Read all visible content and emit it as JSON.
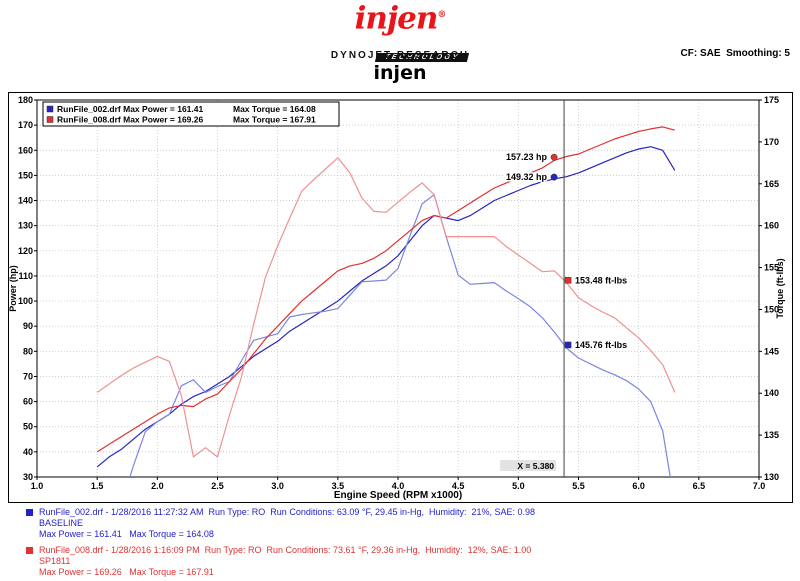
{
  "header": {
    "logo_text": "injen",
    "logo_reg": "®",
    "logo_banner": "TECHNOLOGY",
    "lab_name": "DYNOJET RESEARCH",
    "cf_label": "CF: SAE  Smoothing: 5",
    "title": "injen"
  },
  "chart_data": {
    "type": "line",
    "xlabel": "Engine Speed (RPM x1000)",
    "ylabel_left": "Power (hp)",
    "ylabel_right": "Torque (ft-lbs)",
    "x_range": [
      1.0,
      7.0
    ],
    "x_tick_step": 0.5,
    "power_range": [
      30,
      180
    ],
    "power_tick_step": 10,
    "torque_range": [
      130,
      175
    ],
    "torque_tick_step": 5,
    "grid": true,
    "cursor_x": 5.38,
    "cursor_label": "X = 5.380",
    "x": [
      1.5,
      1.6,
      1.7,
      1.8,
      1.9,
      2.0,
      2.1,
      2.2,
      2.3,
      2.4,
      2.5,
      2.6,
      2.7,
      2.8,
      2.9,
      3.0,
      3.1,
      3.2,
      3.3,
      3.4,
      3.5,
      3.6,
      3.7,
      3.8,
      3.9,
      4.0,
      4.1,
      4.2,
      4.3,
      4.4,
      4.5,
      4.6,
      4.7,
      4.8,
      4.9,
      5.0,
      5.1,
      5.2,
      5.3,
      5.4,
      5.5,
      5.6,
      5.7,
      5.8,
      5.9,
      6.0,
      6.1,
      6.2,
      6.3
    ],
    "series": [
      {
        "name": "RunFile_002.drf Power (hp)",
        "axis": "power",
        "color": "#2525c0",
        "values": [
          34,
          38,
          41,
          45,
          49,
          52,
          55,
          59,
          62,
          64,
          67,
          70,
          74,
          78,
          81,
          84,
          88,
          91,
          94,
          97,
          100,
          104,
          108,
          111,
          114,
          118,
          124,
          130,
          134,
          133,
          132,
          134,
          137,
          140,
          142,
          144,
          146,
          147.5,
          148.6,
          149.5,
          151,
          153,
          155,
          157,
          159,
          160.5,
          161.4,
          160,
          152
        ]
      },
      {
        "name": "RunFile_002.drf Torque (ft-lbs)",
        "axis": "torque",
        "color": "#7b86e0",
        "values": [
          119.0,
          124.7,
          126.7,
          131.3,
          135.4,
          136.6,
          137.5,
          140.9,
          141.6,
          140.1,
          140.8,
          141.4,
          143.9,
          146.3,
          146.7,
          147.1,
          149.1,
          149.4,
          149.6,
          149.8,
          150.1,
          151.7,
          153.3,
          153.4,
          153.5,
          154.9,
          158.8,
          162.6,
          163.7,
          158.7,
          154.1,
          153.0,
          153.1,
          153.2,
          152.2,
          151.3,
          150.3,
          149.0,
          147.3,
          145.4,
          144.2,
          143.5,
          142.8,
          142.2,
          141.5,
          140.5,
          139.0,
          135.5,
          126.7
        ]
      },
      {
        "name": "RunFile_008.drf Power (hp)",
        "axis": "power",
        "color": "#e03030",
        "values": [
          40,
          43,
          46,
          49,
          52,
          55,
          57.5,
          58.5,
          58,
          61,
          63,
          68,
          73,
          79,
          85,
          90,
          95,
          100,
          104,
          108,
          112,
          114,
          115,
          117,
          120,
          124,
          128,
          132,
          134,
          133,
          136,
          139,
          142,
          145,
          147,
          149,
          151,
          153,
          156,
          157.5,
          158.5,
          160.5,
          162.5,
          164.5,
          166,
          167.5,
          168.5,
          169.3,
          168
        ]
      },
      {
        "name": "RunFile_008.drf Torque (ft-lbs)",
        "axis": "torque",
        "color": "#f09090",
        "values": [
          140.1,
          141.1,
          142.1,
          143.0,
          143.7,
          144.4,
          143.8,
          139.7,
          132.4,
          133.5,
          132.4,
          137.4,
          142.0,
          148.2,
          153.9,
          157.6,
          160.9,
          164.1,
          165.5,
          166.8,
          168.1,
          166.3,
          163.3,
          161.7,
          161.6,
          162.8,
          164.0,
          165.1,
          163.7,
          158.7,
          158.7,
          158.7,
          158.7,
          158.7,
          157.5,
          156.5,
          155.5,
          154.5,
          154.6,
          153.2,
          151.4,
          150.5,
          149.7,
          149.0,
          147.8,
          146.6,
          145.1,
          143.4,
          140.1
        ]
      }
    ],
    "annotations": [
      {
        "text": "157.23 hp",
        "axis": "power",
        "value": 157.23,
        "marker": "circle",
        "color": "#e03030",
        "side": "left"
      },
      {
        "text": "149.32 hp",
        "axis": "power",
        "value": 149.32,
        "marker": "circle",
        "color": "#2525c0",
        "side": "left"
      },
      {
        "text": "153.48 ft-lbs",
        "axis": "torque",
        "value": 153.48,
        "marker": "square",
        "color": "#e03030",
        "side": "right"
      },
      {
        "text": "145.76 ft-lbs",
        "axis": "torque",
        "value": 145.76,
        "marker": "square",
        "color": "#2525c0",
        "side": "right"
      }
    ],
    "legend_box": {
      "rows": [
        {
          "color": "#2525c0",
          "file": "RunFile_002.drf",
          "max_power": "Max Power = 161.41",
          "max_torque": "Max Torque = 164.08"
        },
        {
          "color": "#e03030",
          "file": "RunFile_008.drf",
          "max_power": "Max Power = 169.26",
          "max_torque": "Max Torque = 167.91"
        }
      ]
    }
  },
  "footer_runs": [
    {
      "color": "#2222cc",
      "line1": "RunFile_002.drf - 1/28/2016 11:27:32 AM  Run Type: RO  Run Conditions: 63.09 °F, 29.45 in-Hg,  Humidity:  21%, SAE: 0.98",
      "line2": "BASELINE",
      "line3": "Max Power = 161.41   Max Torque = 164.08"
    },
    {
      "color": "#dd3333",
      "line1": "RunFile_008.drf - 1/28/2016 1:16:09 PM  Run Type: RO  Run Conditions: 73.61 °F, 29.36 in-Hg,  Humidity:  12%, SAE: 1.00",
      "line2": "SP1811",
      "line3": "Max Power = 169.26   Max Torque = 167.91"
    }
  ]
}
